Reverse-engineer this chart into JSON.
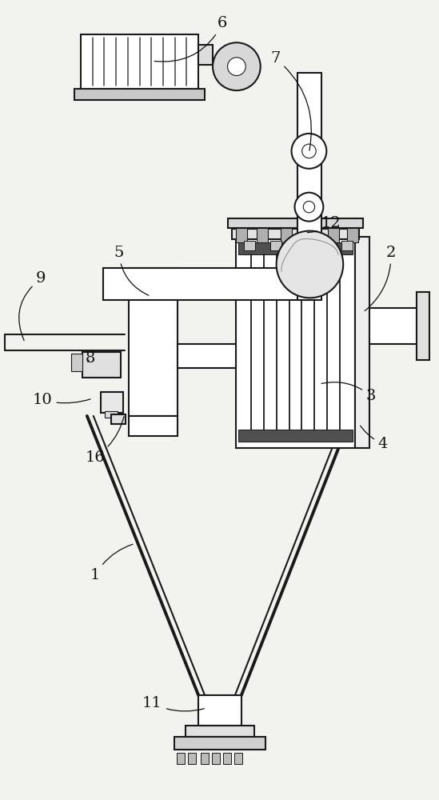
{
  "bg_color": "#f2f2ee",
  "line_color": "#1a1a1a",
  "lw": 1.5,
  "tlw": 2.8
}
